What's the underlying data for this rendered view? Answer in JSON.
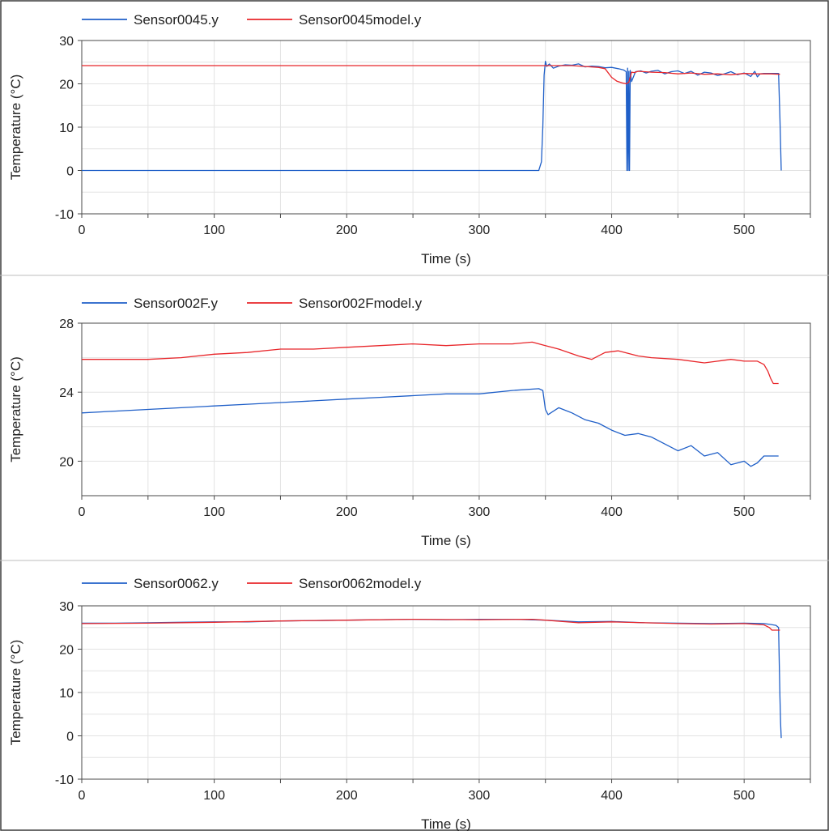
{
  "chart_data": [
    {
      "type": "line",
      "xlabel": "Time (s)",
      "ylabel": "Temperature (°C)",
      "xlim": [
        0,
        550
      ],
      "ylim": [
        -10,
        30
      ],
      "xticks": [
        0,
        100,
        200,
        300,
        400,
        500
      ],
      "yticks": [
        -10,
        0,
        10,
        20,
        30
      ],
      "grid": true,
      "legend_position": "top",
      "series": [
        {
          "name": "Sensor0045.y",
          "color": "#1f5fc8",
          "x": [
            0,
            100,
            200,
            300,
            345,
            347,
            348,
            349,
            350,
            351,
            353,
            356,
            360,
            365,
            370,
            375,
            380,
            385,
            390,
            395,
            400,
            405,
            409,
            411,
            411.5,
            412,
            412.5,
            413,
            413.5,
            414,
            415,
            418,
            422,
            426,
            430,
            435,
            440,
            445,
            450,
            455,
            460,
            465,
            470,
            475,
            480,
            485,
            490,
            495,
            500,
            505,
            508,
            510,
            512,
            515,
            520,
            526,
            527,
            528
          ],
          "y": [
            0,
            0,
            0,
            0,
            0,
            2,
            10,
            22,
            25.2,
            24.0,
            24.6,
            23.6,
            24.1,
            24.4,
            24.3,
            24.6,
            23.9,
            24.1,
            24.0,
            23.7,
            23.8,
            23.5,
            23.2,
            22.8,
            0,
            23.6,
            0,
            22.9,
            0,
            23.1,
            20.5,
            22.8,
            23.0,
            22.5,
            22.9,
            23.1,
            22.3,
            22.8,
            23.0,
            22.4,
            22.9,
            22.0,
            22.7,
            22.5,
            21.9,
            22.3,
            22.8,
            22.1,
            22.5,
            21.7,
            22.9,
            21.6,
            22.3,
            22.4,
            22.4,
            22.4,
            12,
            0
          ]
        },
        {
          "name": "Sensor0045model.y",
          "color": "#e8262a",
          "x": [
            0,
            100,
            200,
            300,
            350,
            370,
            380,
            390,
            395,
            400,
            404,
            408,
            411,
            413,
            415,
            417,
            420,
            430,
            440,
            450,
            460,
            470,
            480,
            490,
            500,
            510,
            520,
            527
          ],
          "y": [
            24.2,
            24.2,
            24.2,
            24.2,
            24.2,
            24.2,
            24.0,
            23.8,
            23.5,
            21.5,
            20.6,
            20.2,
            20.0,
            20.4,
            22.7,
            22.6,
            22.9,
            22.7,
            22.6,
            22.3,
            22.5,
            22.2,
            22.3,
            22.1,
            22.4,
            22.3,
            22.3,
            22.2
          ]
        }
      ]
    },
    {
      "type": "line",
      "xlabel": "Time (s)",
      "ylabel": "Temperature (°C)",
      "xlim": [
        0,
        550
      ],
      "ylim": [
        18,
        28
      ],
      "xticks": [
        0,
        100,
        200,
        300,
        400,
        500
      ],
      "yticks": [
        20,
        24,
        28
      ],
      "grid": true,
      "legend_position": "top",
      "series": [
        {
          "name": "Sensor002F.y",
          "color": "#1f5fc8",
          "x": [
            0,
            25,
            50,
            75,
            100,
            125,
            150,
            175,
            200,
            225,
            250,
            275,
            300,
            325,
            345,
            348,
            350,
            352,
            360,
            370,
            380,
            390,
            400,
            410,
            420,
            430,
            440,
            450,
            460,
            470,
            480,
            490,
            500,
            505,
            510,
            515,
            520,
            526
          ],
          "y": [
            22.8,
            22.9,
            23.0,
            23.1,
            23.2,
            23.3,
            23.4,
            23.5,
            23.6,
            23.7,
            23.8,
            23.9,
            23.9,
            24.1,
            24.2,
            24.1,
            23.0,
            22.7,
            23.1,
            22.8,
            22.4,
            22.2,
            21.8,
            21.5,
            21.6,
            21.4,
            21.0,
            20.6,
            20.9,
            20.3,
            20.5,
            19.8,
            20.0,
            19.7,
            19.9,
            20.3,
            20.3,
            20.3
          ]
        },
        {
          "name": "Sensor002Fmodel.y",
          "color": "#e8262a",
          "x": [
            0,
            25,
            50,
            75,
            100,
            125,
            150,
            175,
            200,
            225,
            250,
            275,
            300,
            325,
            340,
            350,
            360,
            375,
            385,
            395,
            405,
            420,
            430,
            450,
            470,
            480,
            490,
            500,
            510,
            515,
            518,
            520,
            522,
            526
          ],
          "y": [
            25.9,
            25.9,
            25.9,
            26.0,
            26.2,
            26.3,
            26.5,
            26.5,
            26.6,
            26.7,
            26.8,
            26.7,
            26.8,
            26.8,
            26.9,
            26.7,
            26.5,
            26.1,
            25.9,
            26.3,
            26.4,
            26.1,
            26.0,
            25.9,
            25.7,
            25.8,
            25.9,
            25.8,
            25.8,
            25.6,
            25.2,
            24.8,
            24.5,
            24.5
          ]
        }
      ]
    },
    {
      "type": "line",
      "xlabel": "Time (s)",
      "ylabel": "Temperature (°C)",
      "xlim": [
        0,
        550
      ],
      "ylim": [
        -10,
        30
      ],
      "xticks": [
        0,
        100,
        200,
        300,
        400,
        500
      ],
      "yticks": [
        -10,
        0,
        10,
        20,
        30
      ],
      "grid": true,
      "legend_position": "top",
      "series": [
        {
          "name": "Sensor0062.y",
          "color": "#1f5fc8",
          "x": [
            0,
            25,
            50,
            75,
            100,
            125,
            150,
            175,
            200,
            225,
            250,
            275,
            300,
            325,
            350,
            375,
            400,
            425,
            450,
            475,
            500,
            515,
            520,
            524,
            526,
            527,
            527.5,
            528
          ],
          "y": [
            26.0,
            26.0,
            26.1,
            26.2,
            26.3,
            26.3,
            26.5,
            26.6,
            26.7,
            26.8,
            26.9,
            26.8,
            26.9,
            26.9,
            26.7,
            26.3,
            26.4,
            26.1,
            26.0,
            25.9,
            26.0,
            25.9,
            25.7,
            25.5,
            25.0,
            9,
            3,
            -0.5
          ]
        },
        {
          "name": "Sensor0062model.y",
          "color": "#e8262a",
          "x": [
            0,
            50,
            100,
            150,
            200,
            250,
            300,
            340,
            350,
            375,
            400,
            425,
            450,
            475,
            500,
            515,
            519,
            521,
            527
          ],
          "y": [
            25.9,
            26.0,
            26.2,
            26.5,
            26.7,
            26.9,
            26.8,
            26.9,
            26.7,
            26.1,
            26.3,
            26.1,
            25.9,
            25.8,
            25.9,
            25.6,
            25.0,
            24.4,
            24.4
          ]
        }
      ]
    }
  ]
}
